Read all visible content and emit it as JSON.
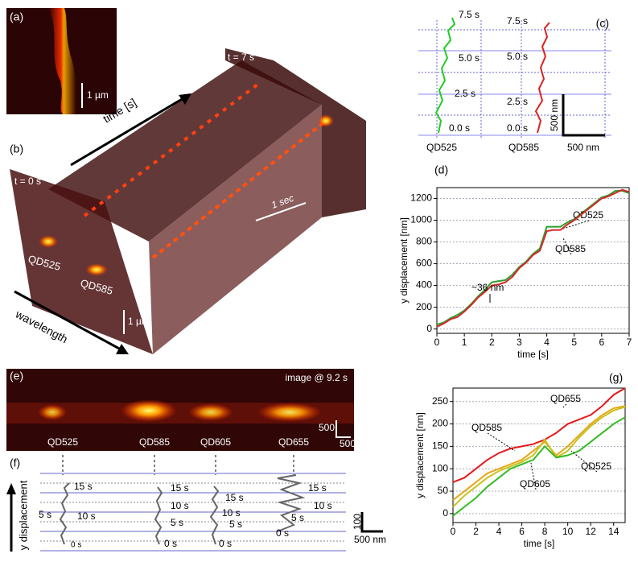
{
  "panels": {
    "a": {
      "label": "(a)",
      "scale": "1 µm"
    },
    "b": {
      "label": "(b)",
      "time_axis": "time [s]",
      "t_end": "t = 7 s",
      "t_start": "t = 0 s",
      "dot1": "QD525",
      "dot2": "QD585",
      "time_scale": "1 sec",
      "space_scale": "1 µm",
      "wavelength_axis": "wavelength"
    },
    "c": {
      "label": "(c)",
      "left_times": [
        "7.5 s",
        "5.0 s",
        "2.5 s",
        "0.0 s"
      ],
      "right_times": [
        "7.5 s",
        "5.0 s",
        "2.5 s",
        "0.0 s"
      ],
      "left_name": "QD525",
      "right_name": "QD585",
      "v_scale": "500 nm",
      "h_scale": "500 nm"
    },
    "e": {
      "label": "(e)",
      "caption": "image @ 9.2 s",
      "v_scale": "500",
      "h_scale": "500 nm",
      "names": [
        "QD525",
        "QD585",
        "QD605",
        "QD655"
      ]
    },
    "f": {
      "label": "(f)",
      "axis": "y displacement",
      "v_scale": "100",
      "h_scale": "500 nm",
      "trace1": [
        "15 s",
        "5 s",
        "10 s",
        "0 s"
      ],
      "trace2": [
        "15 s",
        "10 s",
        "5 s",
        "0 s"
      ],
      "trace3": [
        "15 s",
        "10 s",
        "5 s",
        "0 s"
      ],
      "trace4": [
        "15 s",
        "10 s",
        "5 s",
        "0 s"
      ]
    }
  },
  "chart_data": [
    {
      "type": "line",
      "panel": "(d)",
      "xlabel": "time [s]",
      "ylabel": "y displacement [nm]",
      "annotation": "~36 nm",
      "x": [
        0,
        0.25,
        0.5,
        0.75,
        1,
        1.25,
        1.5,
        1.75,
        2,
        2.25,
        2.5,
        2.75,
        3,
        3.25,
        3.5,
        3.75,
        4,
        4.25,
        4.5,
        4.75,
        5,
        5.25,
        5.5,
        5.75,
        6,
        6.25,
        6.5,
        6.75,
        7
      ],
      "series": [
        {
          "name": "QD525",
          "color": "#2ca02c",
          "values": [
            40,
            60,
            100,
            130,
            170,
            230,
            300,
            360,
            430,
            440,
            450,
            500,
            570,
            620,
            690,
            740,
            940,
            940,
            940,
            980,
            1010,
            1060,
            1110,
            1160,
            1210,
            1230,
            1270,
            1270,
            1250
          ]
        },
        {
          "name": "QD585",
          "color": "#d62728",
          "values": [
            20,
            50,
            90,
            110,
            160,
            220,
            290,
            340,
            400,
            410,
            430,
            480,
            560,
            610,
            680,
            720,
            900,
            910,
            910,
            960,
            1000,
            1050,
            1100,
            1150,
            1200,
            1220,
            1250,
            1280,
            1260
          ]
        }
      ],
      "xlim": [
        0,
        7
      ],
      "ylim": [
        -40,
        1300
      ],
      "xticks": [
        0,
        1,
        2,
        3,
        4,
        5,
        6,
        7
      ],
      "yticks": [
        0,
        200,
        400,
        600,
        800,
        1000,
        1200
      ],
      "grid": true
    },
    {
      "type": "line",
      "panel": "(g)",
      "xlabel": "time [s]",
      "ylabel": "y displacement [nm]",
      "x": [
        0,
        1,
        2,
        3,
        4,
        5,
        6,
        7,
        8,
        9,
        10,
        11,
        12,
        13,
        14,
        15
      ],
      "series": [
        {
          "name": "QD655",
          "color": "#e41a1c",
          "values": [
            70,
            80,
            100,
            120,
            135,
            145,
            150,
            155,
            165,
            180,
            200,
            210,
            220,
            240,
            265,
            280
          ]
        },
        {
          "name": "QD585",
          "color": "#e6a817",
          "values": [
            30,
            50,
            70,
            90,
            100,
            110,
            120,
            140,
            160,
            130,
            150,
            175,
            200,
            220,
            235,
            240
          ]
        },
        {
          "name": "QD605",
          "color": "#c9c21e",
          "values": [
            15,
            40,
            60,
            80,
            95,
            105,
            115,
            130,
            165,
            125,
            140,
            170,
            195,
            215,
            230,
            238
          ]
        },
        {
          "name": "QD525",
          "color": "#33bb22",
          "values": [
            -5,
            15,
            35,
            60,
            80,
            100,
            110,
            120,
            150,
            125,
            130,
            140,
            160,
            180,
            200,
            215
          ]
        }
      ],
      "xlim": [
        0,
        15
      ],
      "ylim": [
        -20,
        280
      ],
      "xticks": [
        0,
        2,
        4,
        6,
        8,
        10,
        12,
        14
      ],
      "yticks": [
        0,
        50,
        100,
        150,
        200,
        250
      ],
      "grid": true
    }
  ]
}
